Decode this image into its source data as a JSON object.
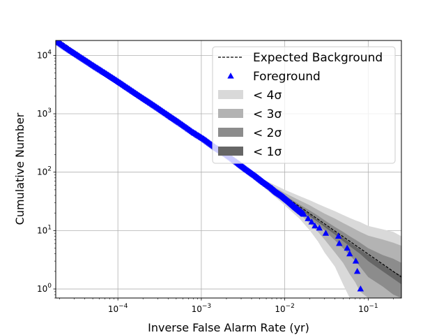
{
  "chart_data": {
    "type": "scatter",
    "xlabel": "Inverse False Alarm Rate (yr)",
    "ylabel": "Cumulative Number",
    "xscale": "log",
    "yscale": "log",
    "xlim": [
      1.8e-05,
      0.25
    ],
    "ylim": [
      0.7,
      18000
    ],
    "grid": true,
    "legend_position": "upper-right",
    "x_ticks": [
      {
        "value": 0.0001,
        "base": "10",
        "exp": "−4"
      },
      {
        "value": 0.001,
        "base": "10",
        "exp": "−3"
      },
      {
        "value": 0.01,
        "base": "10",
        "exp": "−2"
      },
      {
        "value": 0.1,
        "base": "10",
        "exp": "−1"
      }
    ],
    "y_ticks": [
      {
        "value": 1,
        "base": "10",
        "exp": "0"
      },
      {
        "value": 10,
        "base": "10",
        "exp": "1"
      },
      {
        "value": 100,
        "base": "10",
        "exp": "2"
      },
      {
        "value": 1000,
        "base": "10",
        "exp": "3"
      },
      {
        "value": 10000,
        "base": "10",
        "exp": "4"
      }
    ],
    "legend": [
      {
        "label": "Expected Background",
        "kind": "dashed-line",
        "color": "#000000"
      },
      {
        "label": "Foreground",
        "kind": "triangle-marker",
        "color": "#0000ff"
      },
      {
        "label": "< 4σ",
        "kind": "band",
        "color": "#d9d9d9"
      },
      {
        "label": "< 3σ",
        "kind": "band",
        "color": "#b3b3b3"
      },
      {
        "label": "< 2σ",
        "kind": "band",
        "color": "#8c8c8c"
      },
      {
        "label": "< 1σ",
        "kind": "band",
        "color": "#666666"
      }
    ],
    "expected_background": {
      "x": [
        1.8e-05,
        0.25
      ],
      "y": [
        20000,
        1.6
      ]
    },
    "foreground": {
      "color": "#0000ff",
      "x": [
        1.8e-05,
        2.5e-05,
        3.5e-05,
        5e-05,
        7e-05,
        0.0001,
        0.00014,
        0.0002,
        0.00028,
        0.0004,
        0.00055,
        0.0008,
        0.0011,
        0.0015,
        0.002,
        0.0028,
        0.0035,
        0.0045,
        0.0055,
        0.007,
        0.008,
        0.0095,
        0.011,
        0.013,
        0.015,
        0.017,
        0.019,
        0.021,
        0.023,
        0.026,
        0.031,
        0.044,
        0.045,
        0.056,
        0.06,
        0.071,
        0.074,
        0.081
      ],
      "y": [
        18000,
        13000,
        9500,
        6800,
        5000,
        3600,
        2600,
        1850,
        1350,
        950,
        700,
        480,
        360,
        260,
        200,
        140,
        110,
        85,
        68,
        53,
        45,
        38,
        32,
        26,
        22,
        19,
        16,
        14,
        12,
        11,
        9,
        8,
        6,
        5,
        4,
        3,
        2,
        1
      ]
    },
    "sigma_bands": [
      {
        "label": "< 4σ",
        "color": "#d9d9d9",
        "x": [
          0.005,
          0.01,
          0.015,
          0.02,
          0.025,
          0.03,
          0.04,
          0.05,
          0.06,
          0.07,
          0.08,
          0.1,
          0.15,
          0.2,
          0.25
        ],
        "upper": [
          80,
          50,
          39,
          33,
          28.5,
          25.5,
          21.5,
          18.5,
          16.5,
          15,
          14,
          12,
          10.5,
          9.5,
          8
        ],
        "lower": [
          64,
          27,
          16,
          10,
          6.5,
          4.2,
          2.4,
          1.2,
          0.7,
          0.7,
          0.7,
          0.7,
          0.7,
          0.7,
          0.7
        ]
      },
      {
        "label": "< 3σ",
        "color": "#b3b3b3",
        "x": [
          0.005,
          0.01,
          0.015,
          0.02,
          0.025,
          0.03,
          0.04,
          0.05,
          0.06,
          0.07,
          0.08,
          0.1,
          0.15,
          0.2,
          0.25
        ],
        "upper": [
          78,
          44,
          33,
          27,
          22.5,
          19.5,
          16,
          13.5,
          11.8,
          10.5,
          9.5,
          8.2,
          7,
          6.2,
          5.5
        ],
        "lower": [
          66,
          31,
          19.5,
          13,
          9.5,
          7,
          4.2,
          2.8,
          1.8,
          1.3,
          0.9,
          0.7,
          0.7,
          0.7,
          0.7
        ]
      },
      {
        "label": "< 2σ",
        "color": "#8c8c8c",
        "x": [
          0.005,
          0.01,
          0.015,
          0.02,
          0.025,
          0.03,
          0.04,
          0.05,
          0.06,
          0.07,
          0.08,
          0.1,
          0.15,
          0.2,
          0.25
        ],
        "upper": [
          76,
          40,
          28,
          22,
          18,
          15,
          11.5,
          9.5,
          8,
          7,
          6.2,
          5,
          3.8,
          3.3,
          2.8
        ],
        "lower": [
          68,
          34,
          22.5,
          16,
          12.5,
          10,
          6.8,
          5,
          3.8,
          3,
          2.4,
          1.6,
          1.1,
          0.8,
          0.7
        ]
      },
      {
        "label": "< 1σ",
        "color": "#666666",
        "x": [
          0.005,
          0.01,
          0.015,
          0.02,
          0.025,
          0.03,
          0.04,
          0.05,
          0.06,
          0.07,
          0.08,
          0.1,
          0.15,
          0.2,
          0.25
        ],
        "upper": [
          73,
          37,
          25,
          19,
          15,
          12.5,
          9.5,
          7.5,
          6.3,
          5.4,
          4.7,
          3.8,
          2.6,
          2,
          1.7
        ],
        "lower": [
          70,
          35.5,
          23.5,
          17.5,
          14,
          11.5,
          8.5,
          6.6,
          5.4,
          4.6,
          4,
          3,
          2,
          1.5,
          1.2
        ]
      }
    ]
  }
}
